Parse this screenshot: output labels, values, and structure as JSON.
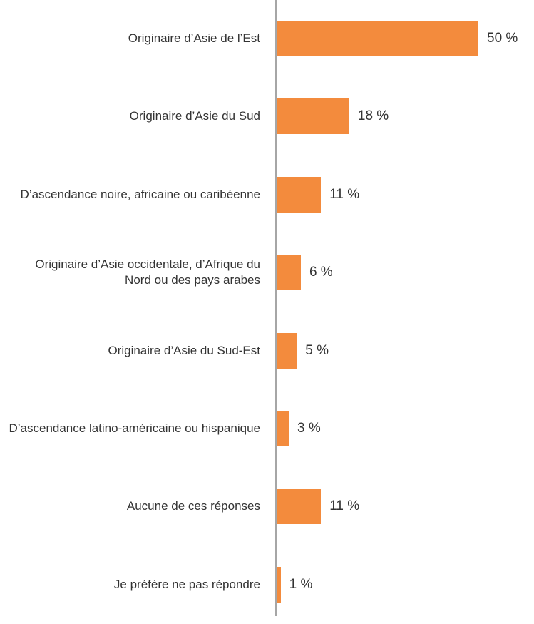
{
  "chart_data": {
    "type": "bar",
    "orientation": "horizontal",
    "categories": [
      "Originaire d’Asie de l’Est",
      "Originaire d’Asie du Sud",
      "D’ascendance noire, africaine ou caribéenne",
      "Originaire d’Asie occidentale, d’Afrique du Nord ou des pays arabes",
      "Originaire d’Asie du Sud-Est",
      "D’ascendance latino-américaine ou hispanique",
      "Aucune de ces réponses",
      "Je préfère ne pas répondre"
    ],
    "values": [
      50,
      18,
      11,
      6,
      5,
      3,
      11,
      1
    ],
    "value_labels": [
      "50 %",
      "18 %",
      "11 %",
      "6 %",
      "5 %",
      "3 %",
      "11 %",
      "1 %"
    ],
    "color": "#f38b3d"
  }
}
